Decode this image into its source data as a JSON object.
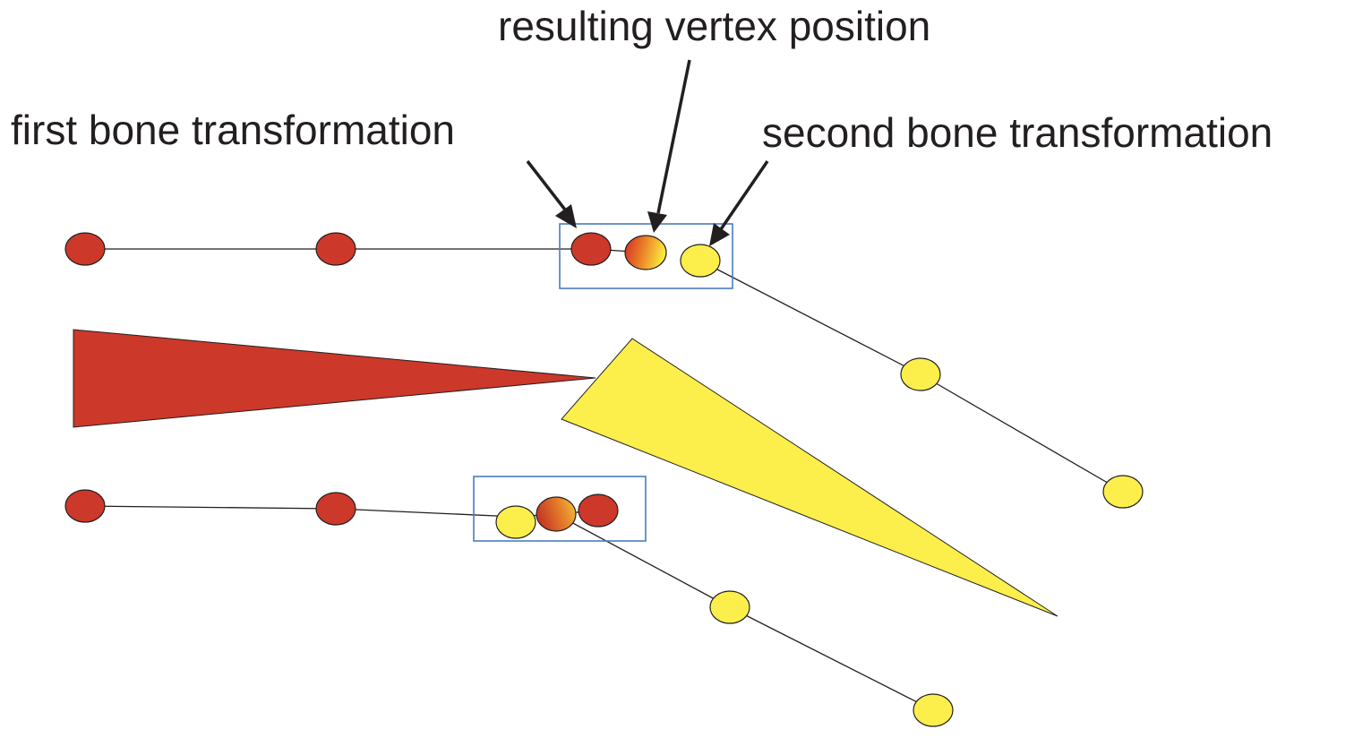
{
  "labels": {
    "resulting": "resulting vertex position",
    "first": "first bone transformation",
    "second": "second bone transformation"
  },
  "colors": {
    "first_bone": "#cc3829",
    "second_bone": "#fcef4b",
    "highlight_box": "#4a7cc0",
    "line": "#231f20",
    "blend_start": "#d42a22",
    "blend_end": "#fbe73c"
  }
}
